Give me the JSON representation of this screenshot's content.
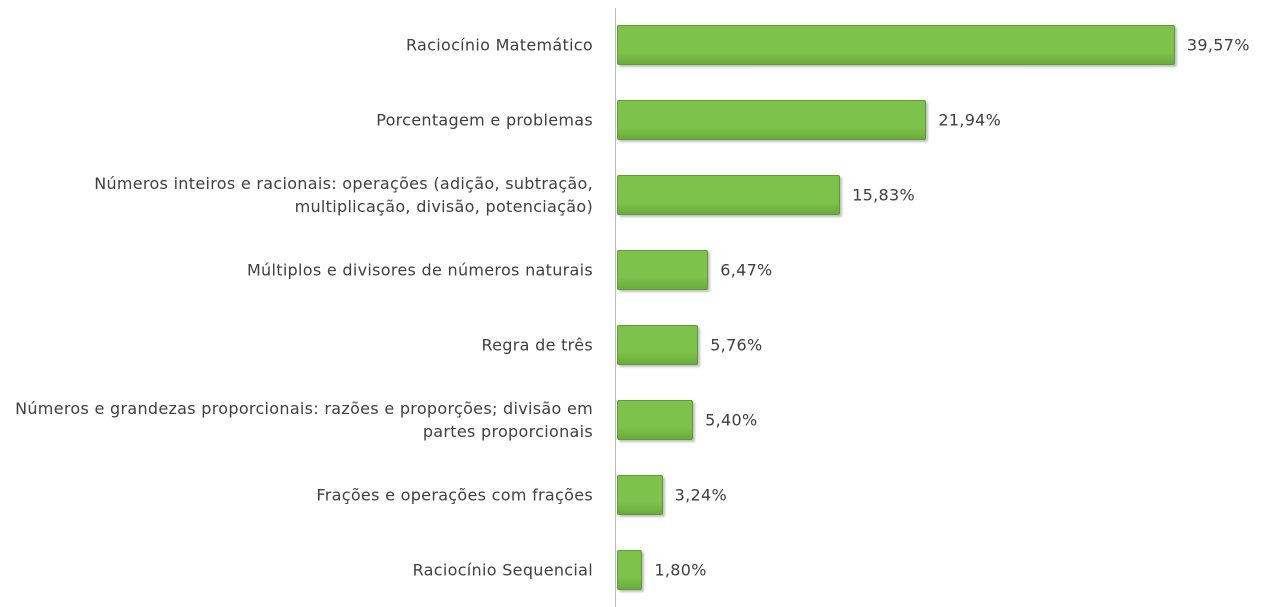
{
  "chart_data": {
    "type": "bar",
    "orientation": "horizontal",
    "categories": [
      "Raciocínio Matemático",
      "Porcentagem e problemas",
      "Números inteiros e racionais: operações (adição, subtração, multiplicação, divisão, potenciação)",
      "Múltiplos e divisores de números naturais",
      "Regra de três",
      "Números e grandezas proporcionais: razões e proporções; divisão em partes proporcionais",
      "Frações e operações com frações",
      "Raciocínio Sequencial"
    ],
    "values": [
      39.57,
      21.94,
      15.83,
      6.47,
      5.76,
      5.4,
      3.24,
      1.8
    ],
    "value_labels": [
      "39,57%",
      "21,94%",
      "15,83%",
      "6,47%",
      "5,76%",
      "5,40%",
      "3,24%",
      "1,80%"
    ],
    "color": "#7dc24b",
    "xlim": [
      0,
      40
    ]
  }
}
